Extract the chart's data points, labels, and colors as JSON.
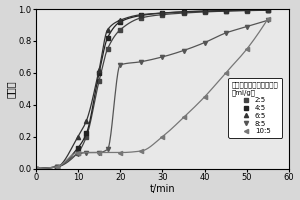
{
  "title": "",
  "xlabel": "t/min",
  "ylabel": "降解率",
  "xlim": [
    0,
    60
  ],
  "ylim": [
    0.0,
    1.0
  ],
  "xticks": [
    0,
    10,
    20,
    30,
    40,
    50,
    60
  ],
  "yticks": [
    0.0,
    0.2,
    0.4,
    0.6,
    0.8,
    1.0
  ],
  "legend_title": "硬酸体积与生物质质量比\n（ml/g）",
  "series": [
    {
      "label": "2:5",
      "marker": "s",
      "color": "#444444",
      "x": [
        0,
        5,
        10,
        12,
        15,
        17,
        20,
        25,
        30,
        35,
        40,
        45,
        50,
        55
      ],
      "y": [
        0.0,
        0.01,
        0.1,
        0.2,
        0.55,
        0.75,
        0.87,
        0.945,
        0.965,
        0.975,
        0.982,
        0.987,
        0.99,
        0.993
      ]
    },
    {
      "label": "4:5",
      "marker": "s",
      "color": "#222222",
      "x": [
        0,
        5,
        10,
        12,
        15,
        17,
        20,
        25,
        30,
        35,
        40,
        45,
        50,
        55
      ],
      "y": [
        0.0,
        0.01,
        0.13,
        0.22,
        0.6,
        0.82,
        0.92,
        0.96,
        0.975,
        0.983,
        0.988,
        0.991,
        0.993,
        0.995
      ]
    },
    {
      "label": "6:5",
      "marker": "^",
      "color": "#333333",
      "x": [
        0,
        5,
        10,
        12,
        15,
        17,
        20,
        25,
        30,
        35,
        40,
        45,
        50,
        55
      ],
      "y": [
        0.0,
        0.01,
        0.2,
        0.3,
        0.62,
        0.87,
        0.93,
        0.965,
        0.975,
        0.982,
        0.986,
        0.99,
        0.992,
        0.994
      ]
    },
    {
      "label": "8:5",
      "marker": "v",
      "color": "#555555",
      "x": [
        0,
        5,
        10,
        12,
        15,
        17,
        20,
        25,
        30,
        35,
        40,
        45,
        50,
        55
      ],
      "y": [
        0.0,
        0.01,
        0.09,
        0.1,
        0.1,
        0.12,
        0.65,
        0.67,
        0.7,
        0.74,
        0.79,
        0.85,
        0.89,
        0.93
      ]
    },
    {
      "label": "10:5",
      "marker": "<",
      "color": "#777777",
      "x": [
        0,
        5,
        10,
        15,
        20,
        25,
        30,
        35,
        40,
        45,
        50,
        55
      ],
      "y": [
        0.0,
        0.01,
        0.1,
        0.1,
        0.1,
        0.11,
        0.2,
        0.32,
        0.45,
        0.6,
        0.75,
        0.94
      ]
    }
  ],
  "figsize": [
    3.0,
    2.0
  ],
  "dpi": 100,
  "legend_fontsize": 5.0,
  "legend_title_fontsize": 5.0,
  "tick_fontsize": 6,
  "label_fontsize": 7,
  "linewidth": 0.9,
  "markersize": 3.0
}
